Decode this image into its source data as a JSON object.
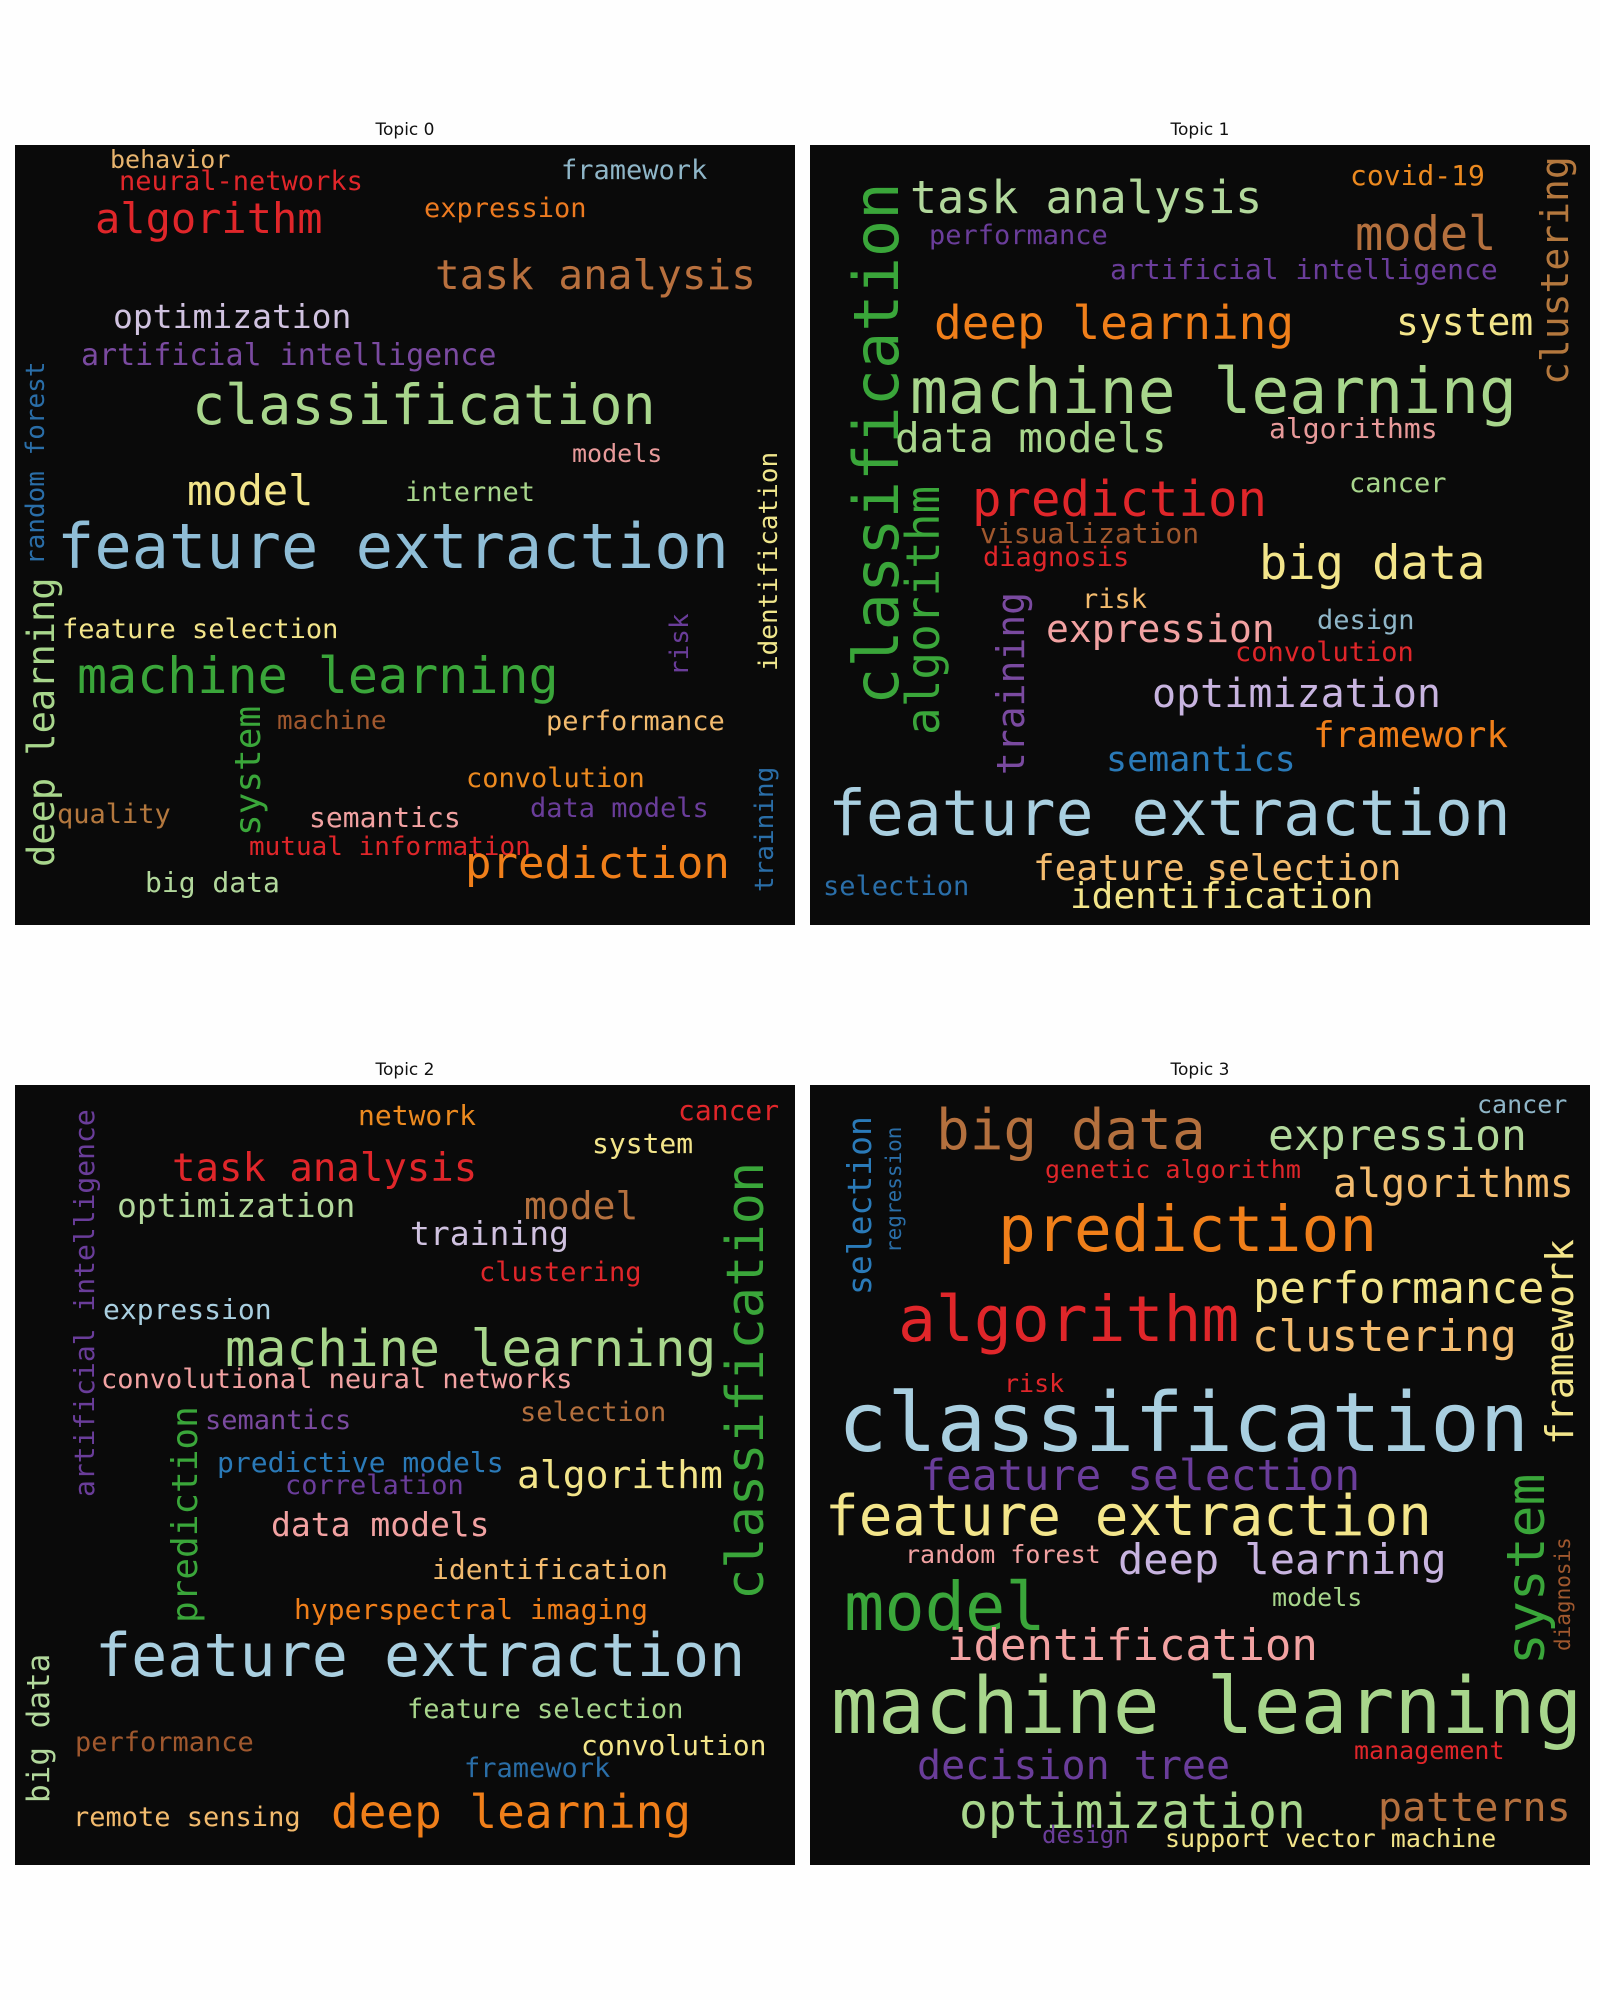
{
  "panels": [
    {
      "title": "Topic 0",
      "words": [
        {
          "text": "behavior",
          "color": "#e8b46e"
        },
        {
          "text": "neural-networks",
          "color": "#e0262a"
        },
        {
          "text": "framework",
          "color": "#8fb6c8"
        },
        {
          "text": "algorithm",
          "color": "#e0262a"
        },
        {
          "text": "expression",
          "color": "#ec7a20"
        },
        {
          "text": "task analysis",
          "color": "#b8703e"
        },
        {
          "text": "optimization",
          "color": "#d0c2e0"
        },
        {
          "text": "artificial intelligence",
          "color": "#7a4aa0"
        },
        {
          "text": "random forest",
          "color": "#2a6ea8"
        },
        {
          "text": "classification",
          "color": "#a8d68c"
        },
        {
          "text": "models",
          "color": "#e89a9a"
        },
        {
          "text": "identification",
          "color": "#f0e68c"
        },
        {
          "text": "model",
          "color": "#f3e58a"
        },
        {
          "text": "internet",
          "color": "#a8d68c"
        },
        {
          "text": "feature extraction",
          "color": "#8fbdd6"
        },
        {
          "text": "deep learning",
          "color": "#a8d68c"
        },
        {
          "text": "feature selection",
          "color": "#f3e58a"
        },
        {
          "text": "risk",
          "color": "#6a3d9a"
        },
        {
          "text": "machine learning",
          "color": "#3aa63a"
        },
        {
          "text": "machine",
          "color": "#a0582e"
        },
        {
          "text": "performance",
          "color": "#f3bb6e"
        },
        {
          "text": "system",
          "color": "#3aa63a"
        },
        {
          "text": "convolution",
          "color": "#ec8a20"
        },
        {
          "text": "quality",
          "color": "#b4783e"
        },
        {
          "text": "semantics",
          "color": "#f2a2a2"
        },
        {
          "text": "data models",
          "color": "#6a3d9a"
        },
        {
          "text": "training",
          "color": "#2a6ea8"
        },
        {
          "text": "mutual information",
          "color": "#e0262a"
        },
        {
          "text": "prediction",
          "color": "#f07f1a"
        },
        {
          "text": "big data",
          "color": "#b2d89c"
        }
      ]
    },
    {
      "title": "Topic 1",
      "words": [
        {
          "text": "task analysis",
          "color": "#b2d89c"
        },
        {
          "text": "covid-19",
          "color": "#ec8a20"
        },
        {
          "text": "clustering",
          "color": "#b4783e"
        },
        {
          "text": "performance",
          "color": "#6a3d9a"
        },
        {
          "text": "model",
          "color": "#b4703e"
        },
        {
          "text": "artificial intelligence",
          "color": "#6a3d9a"
        },
        {
          "text": "classification",
          "color": "#3aa63a"
        },
        {
          "text": "deep learning",
          "color": "#f07f1a"
        },
        {
          "text": "system",
          "color": "#f3e58a"
        },
        {
          "text": "machine learning",
          "color": "#a8d68c"
        },
        {
          "text": "algorithms",
          "color": "#e89a9a"
        },
        {
          "text": "data models",
          "color": "#a8d68c"
        },
        {
          "text": "algorithm",
          "color": "#3aa63a"
        },
        {
          "text": "cancer",
          "color": "#a8d68c"
        },
        {
          "text": "prediction",
          "color": "#e0262a"
        },
        {
          "text": "visualization",
          "color": "#a0582e"
        },
        {
          "text": "diagnosis",
          "color": "#e0262a"
        },
        {
          "text": "big data",
          "color": "#f3e58a"
        },
        {
          "text": "training",
          "color": "#7a4aa0"
        },
        {
          "text": "risk",
          "color": "#f3bb6e"
        },
        {
          "text": "expression",
          "color": "#f2a2a2"
        },
        {
          "text": "design",
          "color": "#8fb6c8"
        },
        {
          "text": "convolution",
          "color": "#e0262a"
        },
        {
          "text": "optimization",
          "color": "#c8b4e0"
        },
        {
          "text": "framework",
          "color": "#f07f1a"
        },
        {
          "text": "semantics",
          "color": "#2a7ab8"
        },
        {
          "text": "feature extraction",
          "color": "#a9cfe0"
        },
        {
          "text": "feature selection",
          "color": "#f3bb6e"
        },
        {
          "text": "selection",
          "color": "#2a6ea8"
        },
        {
          "text": "identification",
          "color": "#f3e58a"
        }
      ]
    },
    {
      "title": "Topic 2",
      "words": [
        {
          "text": "network",
          "color": "#ec8a20"
        },
        {
          "text": "cancer",
          "color": "#e0262a"
        },
        {
          "text": "system",
          "color": "#f3e58a"
        },
        {
          "text": "artificial intelligence",
          "color": "#6a3d9a"
        },
        {
          "text": "task analysis",
          "color": "#e0262a"
        },
        {
          "text": "optimization",
          "color": "#b2d89c"
        },
        {
          "text": "model",
          "color": "#b4703e"
        },
        {
          "text": "training",
          "color": "#d0c2e0"
        },
        {
          "text": "classification",
          "color": "#3aa63a"
        },
        {
          "text": "clustering",
          "color": "#e0262a"
        },
        {
          "text": "expression",
          "color": "#a9cfe0"
        },
        {
          "text": "machine learning",
          "color": "#a8d68c"
        },
        {
          "text": "convolutional neural networks",
          "color": "#f2a2a2"
        },
        {
          "text": "selection",
          "color": "#b4703e"
        },
        {
          "text": "semantics",
          "color": "#7a4aa0"
        },
        {
          "text": "prediction",
          "color": "#3aa63a"
        },
        {
          "text": "predictive models",
          "color": "#2a7ab8"
        },
        {
          "text": "correlation",
          "color": "#6a3d9a"
        },
        {
          "text": "algorithm",
          "color": "#f3e58a"
        },
        {
          "text": "data models",
          "color": "#f2a2a2"
        },
        {
          "text": "identification",
          "color": "#f3bb6e"
        },
        {
          "text": "hyperspectral imaging",
          "color": "#f07f1a"
        },
        {
          "text": "big data",
          "color": "#b2d89c"
        },
        {
          "text": "feature extraction",
          "color": "#a9cfe0"
        },
        {
          "text": "feature selection",
          "color": "#a8d68c"
        },
        {
          "text": "performance",
          "color": "#a0582e"
        },
        {
          "text": "convolution",
          "color": "#f3e58a"
        },
        {
          "text": "framework",
          "color": "#2a6ea8"
        },
        {
          "text": "remote sensing",
          "color": "#f3bb6e"
        },
        {
          "text": "deep learning",
          "color": "#f07f1a"
        }
      ]
    },
    {
      "title": "Topic 3",
      "words": [
        {
          "text": "selection",
          "color": "#2a7ab8"
        },
        {
          "text": "regression",
          "color": "#2a6ea8"
        },
        {
          "text": "big data",
          "color": "#b4703e"
        },
        {
          "text": "expression",
          "color": "#b2d89c"
        },
        {
          "text": "cancer",
          "color": "#8fb6c8"
        },
        {
          "text": "genetic algorithm",
          "color": "#e0262a"
        },
        {
          "text": "algorithms",
          "color": "#f3bb6e"
        },
        {
          "text": "prediction",
          "color": "#f07f1a"
        },
        {
          "text": "framework",
          "color": "#f3e58a"
        },
        {
          "text": "performance",
          "color": "#f3e58a"
        },
        {
          "text": "algorithm",
          "color": "#e0262a"
        },
        {
          "text": "clustering",
          "color": "#f3bb6e"
        },
        {
          "text": "risk",
          "color": "#e0262a"
        },
        {
          "text": "classification",
          "color": "#a9cfe0"
        },
        {
          "text": "feature selection",
          "color": "#6a3d9a"
        },
        {
          "text": "feature extraction",
          "color": "#f3e58a"
        },
        {
          "text": "system",
          "color": "#3aa63a"
        },
        {
          "text": "diagnosis",
          "color": "#a0582e"
        },
        {
          "text": "random forest",
          "color": "#f2a2a2"
        },
        {
          "text": "deep learning",
          "color": "#c8b4e0"
        },
        {
          "text": "model",
          "color": "#3aa63a"
        },
        {
          "text": "models",
          "color": "#a8d68c"
        },
        {
          "text": "identification",
          "color": "#f2a2a2"
        },
        {
          "text": "machine learning",
          "color": "#a8d68c"
        },
        {
          "text": "management",
          "color": "#e0262a"
        },
        {
          "text": "decision tree",
          "color": "#6a3d9a"
        },
        {
          "text": "optimization",
          "color": "#a8d68c"
        },
        {
          "text": "patterns",
          "color": "#b4703e"
        },
        {
          "text": "design",
          "color": "#6a3d9a"
        },
        {
          "text": "support vector machine",
          "color": "#f3e58a"
        }
      ]
    }
  ]
}
